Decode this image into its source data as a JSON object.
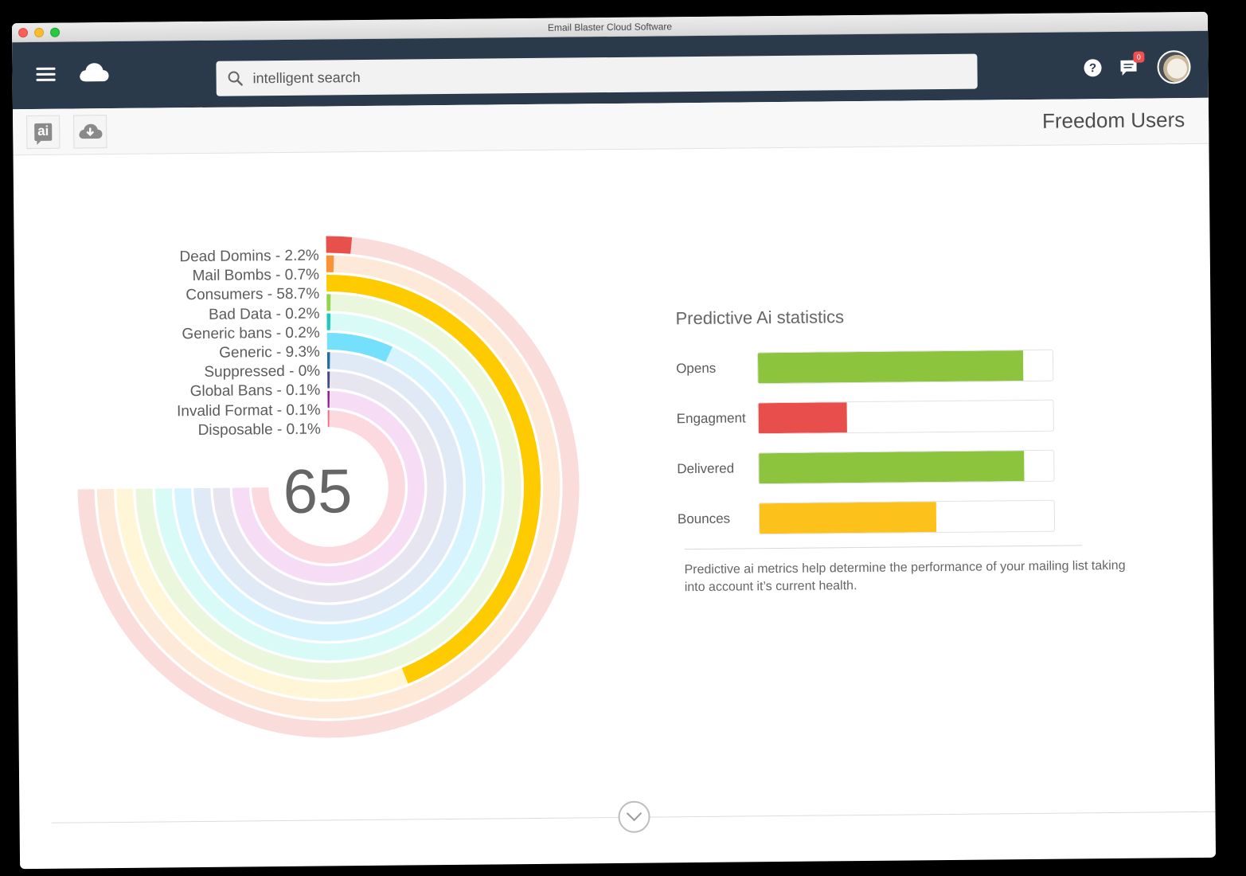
{
  "window": {
    "title": "Email Blaster Cloud Software",
    "traffic_lights": [
      "close",
      "minimize",
      "maximize"
    ]
  },
  "navbar": {
    "menu_icon": "hamburger-menu-icon",
    "logo_icon": "cloud-icon",
    "search": {
      "value": "intelligent search",
      "placeholder": "intelligent search",
      "icon": "search-icon"
    },
    "help_icon": "?",
    "messages": {
      "icon": "chat-icon",
      "badge": "0"
    },
    "avatar": "user-avatar"
  },
  "toolbar": {
    "ai_button": {
      "label": "ai",
      "icon": "ai-chat-icon"
    },
    "download_button": {
      "icon": "cloud-download-icon"
    },
    "page_title": "Freedom Users"
  },
  "radial": {
    "center_value": "65",
    "legend": [
      "Dead Domins - 2.2%",
      "Mail Bombs - 0.7%",
      "Consumers - 58.7%",
      "Bad Data - 0.2%",
      "Generic bans - 0.2%",
      "Generic - 9.3%",
      "Suppressed - 0%",
      "Global Bans - 0.1%",
      "Invalid Format - 0.1%",
      "Disposable - 0.1%"
    ]
  },
  "stats": {
    "title": "Predictive Ai statistics",
    "rows": [
      {
        "label": "Opens",
        "value": 90,
        "color": "#8cc43d"
      },
      {
        "label": "Engagment",
        "value": 30,
        "color": "#e84f4c"
      },
      {
        "label": "Delivered",
        "value": 90,
        "color": "#8cc43d"
      },
      {
        "label": "Bounces",
        "value": 60,
        "color": "#fcc21b"
      }
    ],
    "description": "Predictive ai metrics help determine the performance of your mailing list taking into account it’s current health."
  },
  "footer": {
    "scroll_icon": "chevron-down-icon"
  },
  "chart_data": [
    {
      "type": "radial-bar",
      "title": "",
      "center_label": "65",
      "sweep_degrees": 270,
      "categories": [
        "Dead Domins",
        "Mail Bombs",
        "Consumers",
        "Bad Data",
        "Generic bans",
        "Generic",
        "Suppressed",
        "Global Bans",
        "Invalid Format",
        "Disposable"
      ],
      "values": [
        2.2,
        0.7,
        58.7,
        0.2,
        0.2,
        9.3,
        0,
        0.1,
        0.1,
        0.1
      ],
      "unit": "%",
      "colors": [
        "#e8504c",
        "#fb9334",
        "#fecb00",
        "#92d54b",
        "#1ec9b5",
        "#75e0fb",
        "#1f6fa8",
        "#4a4787",
        "#8a1a85",
        "#f06b7a"
      ],
      "track_colors": [
        "#fadcdb",
        "#fee9d8",
        "#fff6d8",
        "#eaf7dc",
        "#d8fbf7",
        "#d6f4fd",
        "#dfeaf6",
        "#e6e5f0",
        "#f6dcf4",
        "#fcd9df"
      ]
    },
    {
      "type": "bar",
      "orientation": "horizontal",
      "title": "Predictive Ai statistics",
      "categories": [
        "Opens",
        "Engagment",
        "Delivered",
        "Bounces"
      ],
      "values": [
        90,
        30,
        90,
        60
      ],
      "xlim": [
        0,
        100
      ],
      "colors": [
        "#8cc43d",
        "#e84f4c",
        "#8cc43d",
        "#fcc21b"
      ]
    }
  ]
}
